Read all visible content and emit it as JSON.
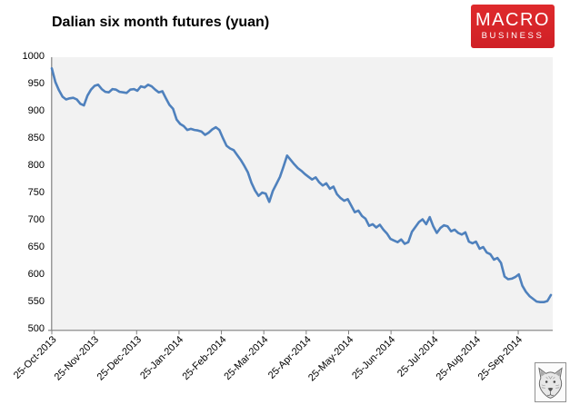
{
  "header": {
    "title": "Dalian six month futures (yuan)",
    "logo": {
      "line1": "MACRO",
      "line2": "BUSINESS",
      "bg_color": "#d6252b",
      "text_color": "#ffffff"
    }
  },
  "watermark": {
    "icon": "fox-sketch-image"
  },
  "chart_data": {
    "type": "line",
    "title": "Dalian six month futures (yuan)",
    "series_name": "Dalian six month futures price (yuan)",
    "legend": "none",
    "grid": false,
    "plot_bg_color": "#f2f2f2",
    "axis_color": "#808080",
    "line_color": "#4f81bd",
    "ylim": [
      500,
      1000
    ],
    "y_tick_labels": [
      "1000",
      "950",
      "900",
      "850",
      "800",
      "750",
      "700",
      "650",
      "600",
      "550",
      "500"
    ],
    "x_tick_labels": [
      "25-Oct-2013",
      "25-Nov-2013",
      "25-Dec-2013",
      "25-Jan-2014",
      "25-Feb-2014",
      "25-Mar-2014",
      "25-Apr-2014",
      "25-May-2014",
      "25-Jun-2014",
      "25-Jul-2014",
      "25-Aug-2014",
      "25-Sep-2014"
    ],
    "values": [
      980,
      955,
      940,
      928,
      923,
      925,
      926,
      923,
      915,
      912,
      930,
      941,
      948,
      950,
      942,
      937,
      936,
      942,
      941,
      937,
      936,
      935,
      941,
      942,
      939,
      947,
      945,
      950,
      947,
      941,
      936,
      938,
      925,
      913,
      906,
      886,
      878,
      874,
      867,
      869,
      867,
      866,
      864,
      858,
      862,
      868,
      872,
      867,
      852,
      838,
      833,
      830,
      821,
      812,
      801,
      789,
      770,
      756,
      746,
      752,
      750,
      735,
      755,
      768,
      781,
      800,
      820,
      812,
      804,
      797,
      792,
      786,
      781,
      776,
      780,
      771,
      765,
      769,
      759,
      763,
      749,
      742,
      737,
      740,
      728,
      716,
      719,
      709,
      704,
      691,
      694,
      688,
      693,
      684,
      677,
      667,
      664,
      661,
      666,
      658,
      661,
      680,
      689,
      698,
      703,
      694,
      707,
      690,
      678,
      687,
      692,
      690,
      681,
      684,
      678,
      675,
      679,
      662,
      659,
      662,
      649,
      652,
      642,
      639,
      629,
      632,
      623,
      598,
      593,
      594,
      597,
      602,
      581,
      570,
      562,
      557,
      552,
      551,
      551,
      553,
      564
    ]
  }
}
